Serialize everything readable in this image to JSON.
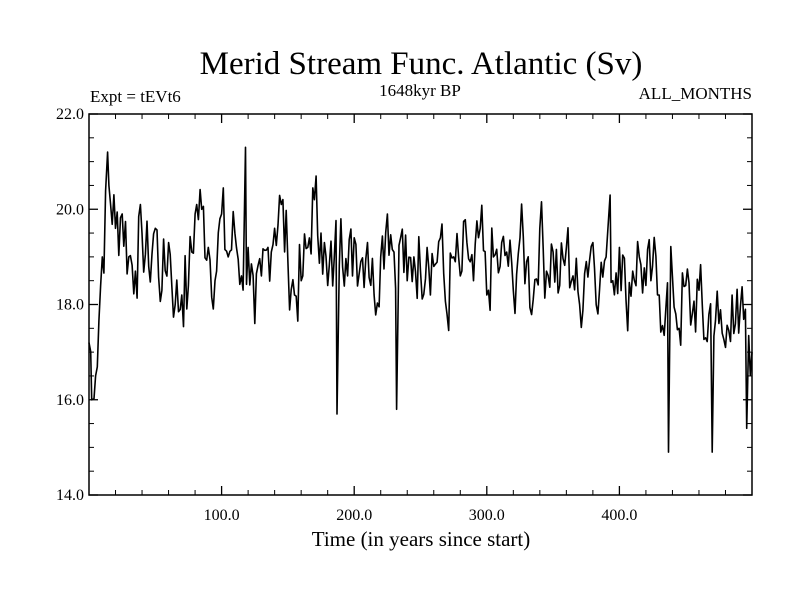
{
  "colors": {
    "background": "#ffffff",
    "line": "#000000",
    "frame": "#000000"
  },
  "chart_data": {
    "type": "line",
    "title": "Merid Stream Func. Atlantic (Sv)",
    "subtitle_left": "Expt = tEVt6",
    "subtitle_center": "1648kyr BP",
    "subtitle_right": "ALL_MONTHS",
    "xlabel": "Time (in years since start)",
    "ylabel": "",
    "xlim": [
      0,
      500
    ],
    "ylim": [
      14.0,
      22.0
    ],
    "x_ticks": [
      100,
      200,
      300,
      400
    ],
    "x_tick_labels": [
      "100.0",
      "200.0",
      "300.0",
      "400.0"
    ],
    "y_ticks": [
      14,
      16,
      18,
      20,
      22
    ],
    "y_tick_labels": [
      "14.0",
      "16.0",
      "18.0",
      "20.0",
      "22.0"
    ],
    "grid": false,
    "series": [
      {
        "name": "Merid Stream Func. Atlantic",
        "x_start": 0,
        "x_step": 5,
        "values": [
          17.2,
          16.5,
          19.0,
          20.5,
          19.6,
          19.9,
          19.0,
          18.7,
          19.5,
          18.8,
          19.6,
          18.3,
          19.3,
          18.0,
          18.2,
          18.4,
          19.9,
          20.0,
          19.2,
          18.5,
          19.9,
          19.0,
          19.5,
          18.6,
          19.2,
          17.6,
          18.6,
          19.2,
          19.6,
          20.1,
          18.9,
          18.2,
          18.5,
          19.2,
          20.2,
          19.5,
          18.4,
          19.0,
          19.8,
          18.6,
          19.4,
          18.9,
          19.3,
          18.2,
          19.0,
          19.9,
          19.1,
          19.4,
          18.5,
          19.0,
          18.7,
          19.2,
          18.8,
          19.4,
          17.8,
          19.0,
          18.6,
          19.3,
          18.5,
          19.6,
          18.2,
          19.0,
          18.8,
          19.1,
          18.3,
          19.4,
          18.9,
          18.1,
          19.6,
          18.7,
          19.1,
          18.4,
          19.2,
          18.6,
          18.0,
          18.9,
          19.3,
          18.3,
          19.0,
          18.5,
          19.2,
          18.1,
          18.7,
          19.0,
          18.4,
          18.8,
          18.2,
          17.9,
          18.6,
          17.5,
          18.4,
          17.8,
          18.3,
          17.3,
          18.1,
          17.6,
          17.1,
          18.2,
          17.4,
          17.9,
          17.0,
          17.7,
          18.3,
          17.2,
          17.8,
          16.8,
          17.5,
          18.1,
          17.3,
          17.7,
          17.0,
          18.2,
          17.4,
          16.9,
          17.6,
          17.1,
          17.9,
          16.8,
          17.5,
          17.2,
          17.8,
          16.9,
          17.4,
          17.9,
          17.0,
          17.3,
          17.8,
          16.6,
          17.2,
          17.7,
          17.1,
          17.6,
          16.9,
          17.3,
          17.8,
          17.0,
          17.5,
          17.2,
          17.9,
          17.3,
          17.0,
          17.6,
          17.2,
          17.8,
          16.9,
          17.5,
          17.3,
          17.7,
          17.1,
          17.6,
          17.0,
          17.4,
          17.8,
          17.2,
          17.5,
          17.0,
          17.3,
          16.6,
          17.0,
          16.5,
          16.1,
          16.9,
          16.4,
          17.0,
          16.6,
          16.2,
          17.1,
          16.5,
          16.8,
          17.3,
          16.7,
          17.1,
          17.5,
          16.9,
          17.3,
          16.8,
          17.2,
          17.6,
          17.0,
          17.4,
          16.9,
          17.3,
          17.7,
          17.1,
          16.6,
          17.2,
          16.8,
          17.5,
          16.9,
          17.3,
          16.7,
          17.2,
          16.5,
          17.1,
          17.6,
          16.9,
          17.3,
          16.8,
          17.4,
          17.0,
          16.6,
          17.2,
          17.7,
          16.9,
          17.4,
          16.8,
          17.3,
          17.0,
          16.4,
          17.2,
          16.8,
          17.5,
          16.9,
          17.3,
          16.6,
          17.1,
          17.5,
          16.8,
          17.2,
          16.7,
          17.4,
          16.9,
          17.3,
          16.6,
          17.2,
          17.6,
          16.8,
          17.3,
          16.9,
          17.5,
          17.0,
          16.7,
          17.3,
          16.8,
          17.4,
          16.9,
          17.2,
          17.6,
          16.9,
          17.1,
          17.5,
          16.8,
          17.2,
          16.9,
          17.4,
          16.7,
          17.1,
          17.5,
          17.0
        ]
      }
    ],
    "notable_points": [
      {
        "x": 2,
        "y": 16.0
      },
      {
        "x": 14,
        "y": 21.2
      },
      {
        "x": 118,
        "y": 21.3
      },
      {
        "x": 187,
        "y": 15.7
      },
      {
        "x": 232,
        "y": 15.8
      },
      {
        "x": 393,
        "y": 20.3
      },
      {
        "x": 437,
        "y": 14.9
      },
      {
        "x": 470,
        "y": 14.9
      },
      {
        "x": 496,
        "y": 15.4
      }
    ]
  }
}
